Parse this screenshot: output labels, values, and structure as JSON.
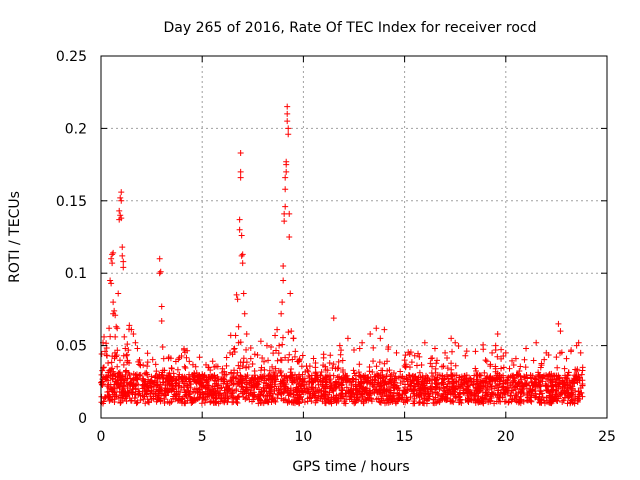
{
  "chart_data": {
    "type": "scatter",
    "title": "Day 265 of 2016, Rate Of TEC Index for receiver rocd",
    "xlabel": "GPS time / hours",
    "ylabel": "ROTI / TECUs",
    "xlim": [
      0,
      25
    ],
    "ylim": [
      0,
      0.25
    ],
    "xticks": [
      0,
      5,
      10,
      15,
      20,
      25
    ],
    "xtick_labels": [
      "0",
      "5",
      "10",
      "15",
      "20",
      "25"
    ],
    "yticks": [
      0,
      0.05,
      0.1,
      0.15,
      0.2,
      0.25
    ],
    "ytick_labels": [
      "0",
      "0.05",
      "0.1",
      "0.15",
      "0.2",
      "0.25"
    ],
    "grid": true,
    "marker": "+",
    "marker_color": "#ff0000",
    "background_model": {
      "description": "dense ROTI scatter across 0-23.8 h",
      "x_range": [
        0,
        23.8
      ],
      "typical_range": [
        0.01,
        0.03
      ]
    },
    "series": [
      {
        "name": "ROTI",
        "x": [
          0.1,
          0.15,
          0.2,
          0.3,
          0.35,
          0.4,
          0.45,
          0.5,
          0.5,
          0.55,
          0.55,
          0.6,
          0.6,
          0.6,
          0.65,
          0.7,
          0.7,
          0.75,
          0.8,
          0.85,
          0.9,
          0.9,
          0.95,
          0.95,
          1.0,
          1.0,
          1.0,
          1.05,
          1.05,
          1.1,
          1.1,
          1.15,
          1.2,
          1.25,
          1.3,
          1.4,
          1.5,
          1.6,
          1.7,
          1.8,
          2.9,
          2.9,
          2.95,
          3.0,
          3.0,
          3.05,
          3.1,
          3.5,
          3.7,
          4.1,
          4.6,
          5.2,
          6.0,
          6.2,
          6.5,
          6.6,
          6.65,
          6.7,
          6.75,
          6.8,
          6.8,
          6.85,
          6.85,
          6.9,
          6.9,
          6.9,
          6.95,
          6.95,
          7.0,
          7.0,
          7.05,
          7.1,
          7.2,
          7.4,
          7.6,
          7.9,
          8.2,
          8.4,
          8.6,
          8.7,
          8.8,
          8.9,
          8.95,
          9.0,
          9.0,
          9.05,
          9.05,
          9.1,
          9.1,
          9.1,
          9.15,
          9.15,
          9.15,
          9.2,
          9.2,
          9.2,
          9.25,
          9.25,
          9.3,
          9.3,
          9.35,
          9.4,
          9.5,
          9.6,
          9.8,
          10.2,
          10.6,
          11.0,
          11.3,
          11.5,
          11.8,
          12.2,
          12.5,
          12.9,
          13.3,
          13.6,
          13.8,
          14.0,
          14.2,
          14.6,
          15.0,
          15.5,
          16.0,
          16.5,
          17.0,
          17.3,
          17.5,
          18.0,
          18.5,
          19.0,
          19.5,
          19.5,
          19.6,
          20.0,
          20.5,
          21.0,
          21.5,
          22.0,
          22.5,
          22.6,
          22.7,
          23.0,
          23.5,
          23.6,
          23.7
        ],
        "y": [
          0.052,
          0.056,
          0.046,
          0.043,
          0.038,
          0.062,
          0.095,
          0.093,
          0.11,
          0.107,
          0.113,
          0.114,
          0.08,
          0.072,
          0.074,
          0.071,
          0.056,
          0.063,
          0.062,
          0.086,
          0.137,
          0.143,
          0.14,
          0.152,
          0.156,
          0.15,
          0.138,
          0.118,
          0.112,
          0.108,
          0.104,
          0.056,
          0.048,
          0.043,
          0.051,
          0.064,
          0.061,
          0.058,
          0.052,
          0.048,
          0.11,
          0.1,
          0.101,
          0.077,
          0.067,
          0.049,
          0.041,
          0.034,
          0.039,
          0.047,
          0.031,
          0.028,
          0.034,
          0.036,
          0.044,
          0.048,
          0.057,
          0.085,
          0.082,
          0.063,
          0.052,
          0.137,
          0.13,
          0.166,
          0.17,
          0.183,
          0.126,
          0.112,
          0.107,
          0.113,
          0.086,
          0.072,
          0.058,
          0.041,
          0.044,
          0.053,
          0.05,
          0.049,
          0.057,
          0.061,
          0.05,
          0.072,
          0.08,
          0.105,
          0.095,
          0.136,
          0.141,
          0.146,
          0.158,
          0.166,
          0.175,
          0.177,
          0.17,
          0.205,
          0.21,
          0.215,
          0.2,
          0.196,
          0.141,
          0.125,
          0.086,
          0.06,
          0.055,
          0.046,
          0.04,
          0.033,
          0.038,
          0.044,
          0.038,
          0.069,
          0.05,
          0.055,
          0.047,
          0.052,
          0.058,
          0.062,
          0.055,
          0.061,
          0.049,
          0.045,
          0.04,
          0.043,
          0.052,
          0.048,
          0.045,
          0.055,
          0.052,
          0.043,
          0.046,
          0.04,
          0.05,
          0.047,
          0.058,
          0.045,
          0.041,
          0.048,
          0.052,
          0.045,
          0.042,
          0.065,
          0.06,
          0.041,
          0.05,
          0.052,
          0.045
        ]
      }
    ]
  }
}
